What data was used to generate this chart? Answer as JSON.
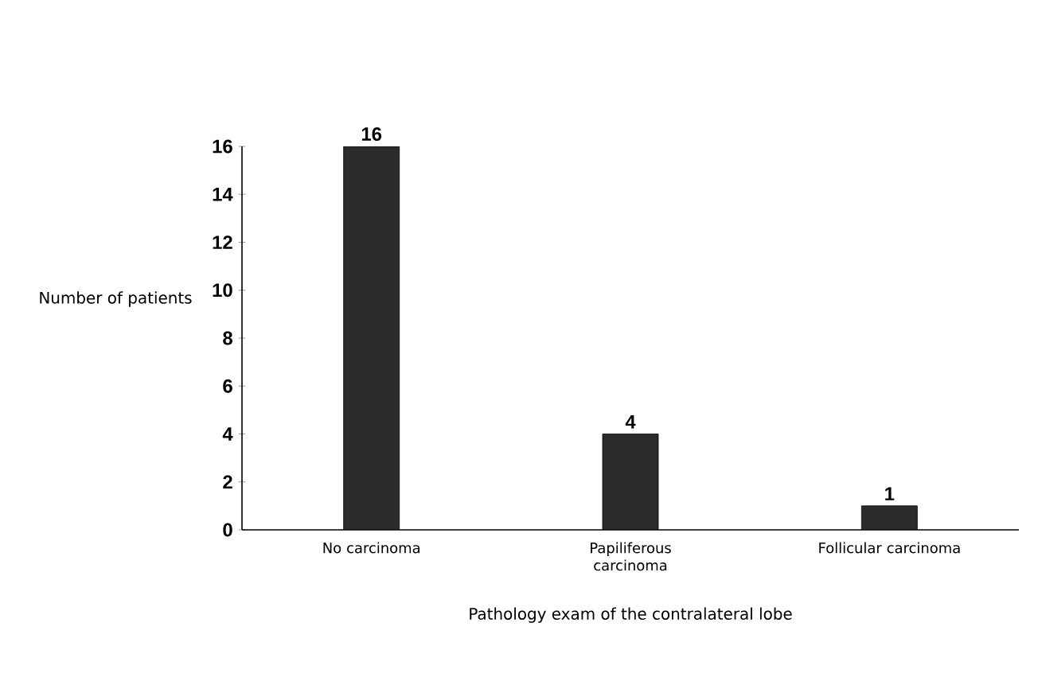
{
  "chart_data": {
    "type": "bar",
    "xlabel": "Pathology exam of the contralateral lobe",
    "ylabel": "Number of patients",
    "categories": [
      "No carcinoma",
      "Papiliferous carcinoma",
      "Follicular carcinoma"
    ],
    "values": [
      16,
      4,
      1
    ],
    "color": "#2b2b2b",
    "ylim": [
      0,
      16
    ],
    "yticks": [
      0,
      2,
      4,
      6,
      8,
      10,
      12,
      14,
      16
    ],
    "grid": false,
    "data_labels": true
  }
}
